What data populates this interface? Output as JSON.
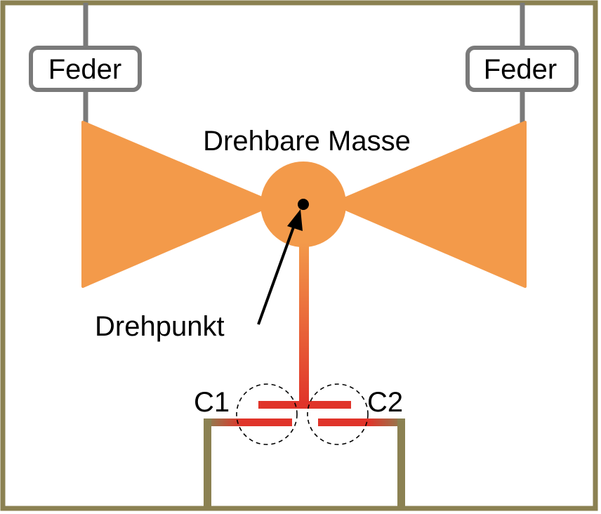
{
  "labels": {
    "spring_left": "Feder",
    "spring_right": "Feder",
    "mass": "Drehbare Masse",
    "pivot": "Drehpunkt",
    "cap1": "C1",
    "cap2": "C2"
  },
  "colors": {
    "frame": "#8b8152",
    "spring_wire": "#7a7a7a",
    "spring_box_border": "#7a7a7a",
    "mass": "#f39a4a",
    "capacitor": "#e0342a",
    "pivot": "#000000",
    "arrow": "#000000",
    "dashed_circle": "#000000"
  }
}
